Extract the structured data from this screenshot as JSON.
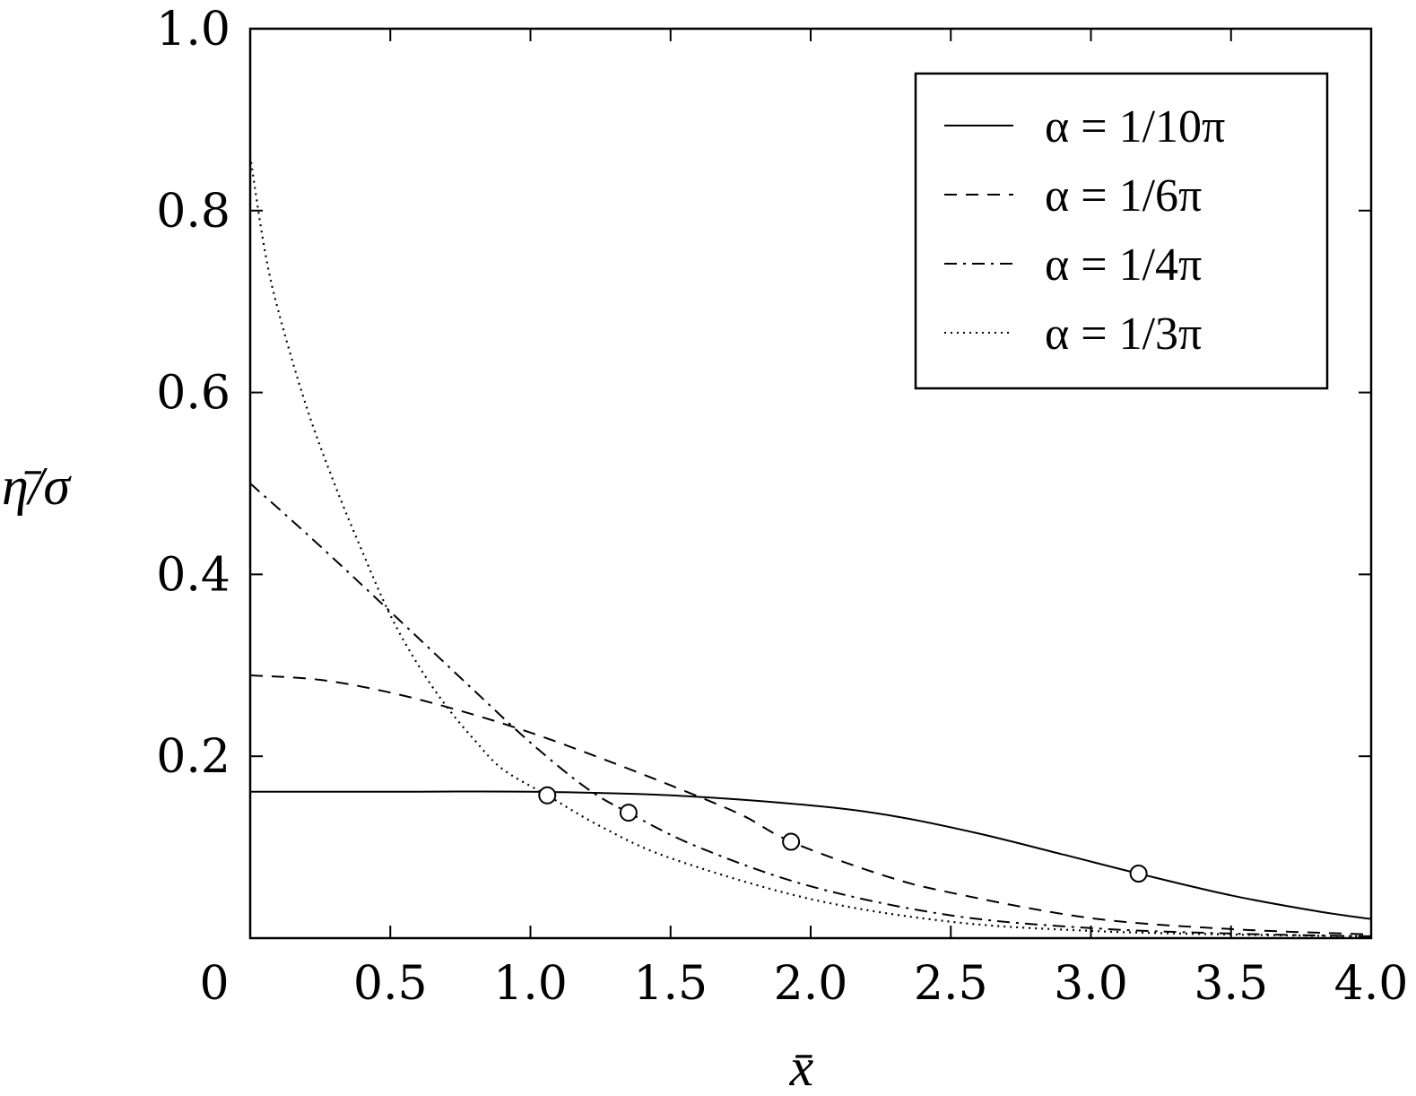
{
  "chart_data": {
    "type": "line",
    "xlabel": "x̄",
    "ylabel": "η̄/σ",
    "xlim": [
      0,
      4.0
    ],
    "ylim": [
      0,
      1.0
    ],
    "x_ticks": [
      0,
      0.5,
      1.0,
      1.5,
      2.0,
      2.5,
      3.0,
      3.5,
      4.0
    ],
    "x_tick_labels": [
      "0",
      "0.5",
      "1.0",
      "1.5",
      "2.0",
      "2.5",
      "3.0",
      "3.5",
      "4.0"
    ],
    "y_ticks": [
      0.2,
      0.4,
      0.6,
      0.8,
      1.0
    ],
    "y_tick_labels": [
      "0.2",
      "0.4",
      "0.6",
      "0.8",
      "1.0"
    ],
    "grid": false,
    "legend_position": "top-right",
    "series": [
      {
        "name": "α = 1/10π",
        "style": "solid",
        "x": [
          0,
          0.5,
          1.0,
          1.5,
          2.0,
          2.3,
          2.6,
          2.9,
          3.17,
          3.5,
          3.8,
          4.0
        ],
        "y": [
          0.161,
          0.161,
          0.161,
          0.157,
          0.146,
          0.134,
          0.115,
          0.092,
          0.071,
          0.047,
          0.03,
          0.021
        ],
        "marker": {
          "x": 3.17,
          "y": 0.071
        }
      },
      {
        "name": "α = 1/6π",
        "style": "dashed",
        "x": [
          0,
          0.25,
          0.5,
          0.75,
          1.0,
          1.25,
          1.5,
          1.75,
          1.93,
          2.25,
          2.5,
          3.0,
          3.5,
          4.0
        ],
        "y": [
          0.289,
          0.284,
          0.27,
          0.25,
          0.226,
          0.198,
          0.168,
          0.136,
          0.106,
          0.07,
          0.05,
          0.022,
          0.01,
          0.004
        ],
        "marker": {
          "x": 1.93,
          "y": 0.106
        }
      },
      {
        "name": "α = 1/4π",
        "style": "dashdot",
        "x": [
          0,
          0.2,
          0.4,
          0.6,
          0.8,
          1.0,
          1.2,
          1.35,
          1.6,
          2.0,
          2.5,
          3.0,
          3.5,
          4.0
        ],
        "y": [
          0.5,
          0.445,
          0.388,
          0.33,
          0.272,
          0.215,
          0.165,
          0.138,
          0.1,
          0.057,
          0.025,
          0.011,
          0.005,
          0.002
        ],
        "marker": {
          "x": 1.35,
          "y": 0.138
        }
      },
      {
        "name": "α = 1/3π",
        "style": "dotted",
        "x": [
          0,
          0.05,
          0.1,
          0.2,
          0.3,
          0.4,
          0.5,
          0.6,
          0.7,
          0.8,
          0.9,
          1.06,
          1.25,
          1.5,
          2.0,
          2.5,
          3.0,
          3.5,
          4.0
        ],
        "y": [
          0.86,
          0.76,
          0.69,
          0.585,
          0.5,
          0.425,
          0.355,
          0.3,
          0.255,
          0.218,
          0.186,
          0.157,
          0.123,
          0.088,
          0.043,
          0.018,
          0.008,
          0.004,
          0.002
        ],
        "marker": {
          "x": 1.06,
          "y": 0.157
        }
      }
    ]
  }
}
